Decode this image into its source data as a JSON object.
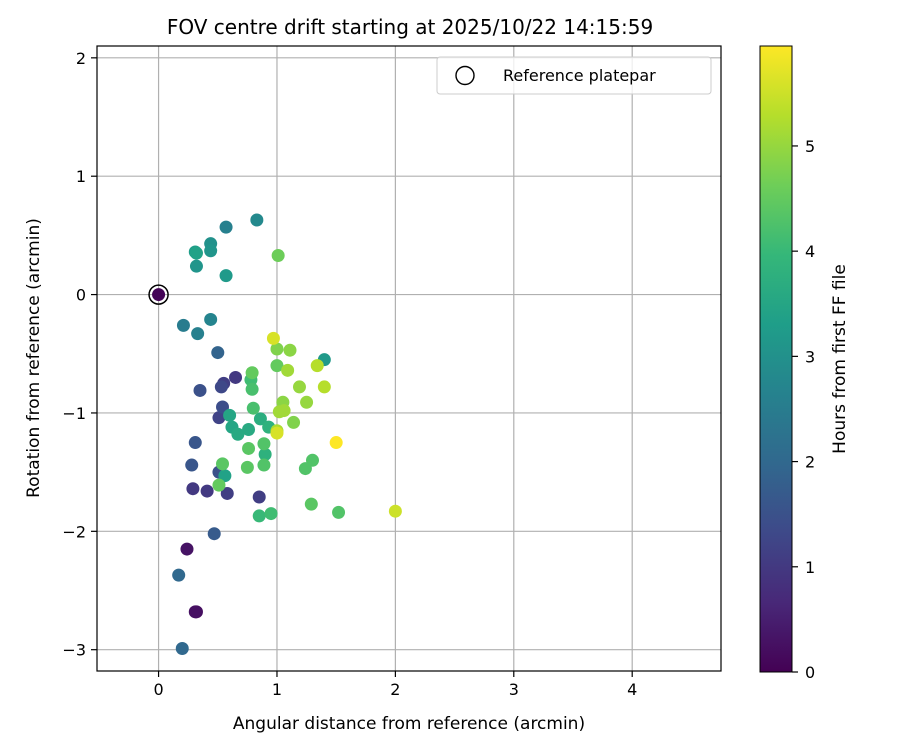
{
  "chart_data": {
    "type": "scatter",
    "title": "FOV centre drift starting at 2025/10/22 14:15:59",
    "xlabel": "Angular distance from reference (arcmin)",
    "ylabel": "Rotation from reference (arcmin)",
    "xlim": [
      -0.52,
      4.75
    ],
    "ylim": [
      -3.18,
      2.1
    ],
    "xticks": [
      0,
      1,
      2,
      3,
      4
    ],
    "xtick_labels": [
      "0",
      "1",
      "2",
      "3",
      "4"
    ],
    "yticks": [
      2,
      1,
      0,
      -1,
      -2,
      -3
    ],
    "ytick_labels": [
      "2",
      "1",
      "0",
      "−1",
      "−2",
      "−3"
    ],
    "grid": true,
    "legend": {
      "position": "top-right",
      "label": "Reference platepar"
    },
    "colorbar": {
      "label": "Hours from first FF file",
      "range": [
        0,
        5.95
      ],
      "ticks": [
        0,
        1,
        2,
        3,
        4,
        5
      ],
      "tick_labels": [
        "0",
        "1",
        "2",
        "3",
        "4",
        "5"
      ],
      "colormap": [
        "#440154",
        "#482878",
        "#3e4989",
        "#31688e",
        "#26828e",
        "#1f9e89",
        "#35b779",
        "#6ece58",
        "#b5de2b",
        "#fde725"
      ]
    },
    "reference": {
      "x": 0.0,
      "y": 0.0,
      "hours": 0.0
    },
    "points": [
      {
        "x": 0.0,
        "y": 0.0,
        "hours": 0.05
      },
      {
        "x": 0.32,
        "y": -2.68,
        "hours": 0.2
      },
      {
        "x": 0.24,
        "y": -2.15,
        "hours": 0.3
      },
      {
        "x": 0.31,
        "y": -2.68,
        "hours": 0.25
      },
      {
        "x": 0.41,
        "y": -1.66,
        "hours": 1.0
      },
      {
        "x": 0.29,
        "y": -1.64,
        "hours": 1.0
      },
      {
        "x": 0.58,
        "y": -1.68,
        "hours": 1.1
      },
      {
        "x": 0.85,
        "y": -1.71,
        "hours": 1.1
      },
      {
        "x": 0.65,
        "y": -0.7,
        "hours": 1.0
      },
      {
        "x": 0.55,
        "y": -0.75,
        "hours": 1.1
      },
      {
        "x": 0.51,
        "y": -1.04,
        "hours": 1.2
      },
      {
        "x": 0.54,
        "y": -0.95,
        "hours": 1.4
      },
      {
        "x": 0.53,
        "y": -0.78,
        "hours": 1.3
      },
      {
        "x": 0.35,
        "y": -0.81,
        "hours": 1.5
      },
      {
        "x": 0.31,
        "y": -1.25,
        "hours": 1.6
      },
      {
        "x": 0.28,
        "y": -1.44,
        "hours": 1.6
      },
      {
        "x": 0.47,
        "y": -2.02,
        "hours": 1.7
      },
      {
        "x": 0.51,
        "y": -1.5,
        "hours": 1.5
      },
      {
        "x": 0.17,
        "y": -2.37,
        "hours": 2.0
      },
      {
        "x": 0.2,
        "y": -2.99,
        "hours": 2.0
      },
      {
        "x": 0.5,
        "y": -0.49,
        "hours": 1.9
      },
      {
        "x": 0.21,
        "y": -0.26,
        "hours": 2.5
      },
      {
        "x": 0.33,
        "y": -0.33,
        "hours": 2.6
      },
      {
        "x": 0.44,
        "y": -0.21,
        "hours": 2.7
      },
      {
        "x": 0.57,
        "y": 0.57,
        "hours": 2.6
      },
      {
        "x": 0.83,
        "y": 0.63,
        "hours": 2.8
      },
      {
        "x": 0.44,
        "y": 0.43,
        "hours": 3.0
      },
      {
        "x": 0.44,
        "y": 0.37,
        "hours": 3.1
      },
      {
        "x": 0.31,
        "y": 0.36,
        "hours": 3.3
      },
      {
        "x": 0.32,
        "y": 0.35,
        "hours": 3.4
      },
      {
        "x": 0.32,
        "y": 0.24,
        "hours": 3.1
      },
      {
        "x": 0.57,
        "y": 0.16,
        "hours": 3.2
      },
      {
        "x": 1.4,
        "y": -0.55,
        "hours": 3.2
      },
      {
        "x": 0.56,
        "y": -1.53,
        "hours": 3.4
      },
      {
        "x": 0.6,
        "y": -1.02,
        "hours": 3.5
      },
      {
        "x": 0.62,
        "y": -1.12,
        "hours": 3.5
      },
      {
        "x": 0.67,
        "y": -1.18,
        "hours": 3.6
      },
      {
        "x": 0.76,
        "y": -1.14,
        "hours": 3.6
      },
      {
        "x": 0.86,
        "y": -1.05,
        "hours": 3.7
      },
      {
        "x": 0.9,
        "y": -1.35,
        "hours": 3.8
      },
      {
        "x": 0.93,
        "y": -1.12,
        "hours": 3.8
      },
      {
        "x": 0.85,
        "y": -1.87,
        "hours": 4.0
      },
      {
        "x": 0.95,
        "y": -1.85,
        "hours": 4.1
      },
      {
        "x": 0.78,
        "y": -0.72,
        "hours": 4.1
      },
      {
        "x": 0.79,
        "y": -0.8,
        "hours": 4.2
      },
      {
        "x": 0.8,
        "y": -0.96,
        "hours": 4.2
      },
      {
        "x": 0.89,
        "y": -1.26,
        "hours": 4.3
      },
      {
        "x": 0.89,
        "y": -1.44,
        "hours": 4.3
      },
      {
        "x": 0.76,
        "y": -1.3,
        "hours": 4.4
      },
      {
        "x": 0.75,
        "y": -1.46,
        "hours": 4.4
      },
      {
        "x": 0.54,
        "y": -1.43,
        "hours": 4.4
      },
      {
        "x": 0.51,
        "y": -1.61,
        "hours": 4.5
      },
      {
        "x": 1.24,
        "y": -1.47,
        "hours": 4.3
      },
      {
        "x": 1.3,
        "y": -1.4,
        "hours": 4.3
      },
      {
        "x": 1.29,
        "y": -1.77,
        "hours": 4.4
      },
      {
        "x": 1.52,
        "y": -1.84,
        "hours": 4.3
      },
      {
        "x": 1.0,
        "y": -0.6,
        "hours": 4.5
      },
      {
        "x": 0.79,
        "y": -0.66,
        "hours": 4.5
      },
      {
        "x": 1.01,
        "y": 0.33,
        "hours": 4.6
      },
      {
        "x": 1.0,
        "y": -0.46,
        "hours": 4.8
      },
      {
        "x": 1.11,
        "y": -0.47,
        "hours": 4.9
      },
      {
        "x": 1.05,
        "y": -0.91,
        "hours": 4.9
      },
      {
        "x": 1.14,
        "y": -1.08,
        "hours": 4.8
      },
      {
        "x": 1.19,
        "y": -0.78,
        "hours": 5.0
      },
      {
        "x": 1.25,
        "y": -0.91,
        "hours": 5.0
      },
      {
        "x": 1.02,
        "y": -0.99,
        "hours": 5.1
      },
      {
        "x": 1.06,
        "y": -0.98,
        "hours": 5.1
      },
      {
        "x": 1.09,
        "y": -0.64,
        "hours": 5.1
      },
      {
        "x": 1.0,
        "y": -1.15,
        "hours": 5.2
      },
      {
        "x": 1.34,
        "y": -0.6,
        "hours": 5.3
      },
      {
        "x": 1.4,
        "y": -0.78,
        "hours": 5.3
      },
      {
        "x": 0.97,
        "y": -0.37,
        "hours": 5.6
      },
      {
        "x": 1.0,
        "y": -1.17,
        "hours": 5.6
      },
      {
        "x": 2.0,
        "y": -1.83,
        "hours": 5.5
      },
      {
        "x": 1.5,
        "y": -1.25,
        "hours": 5.95
      }
    ]
  }
}
